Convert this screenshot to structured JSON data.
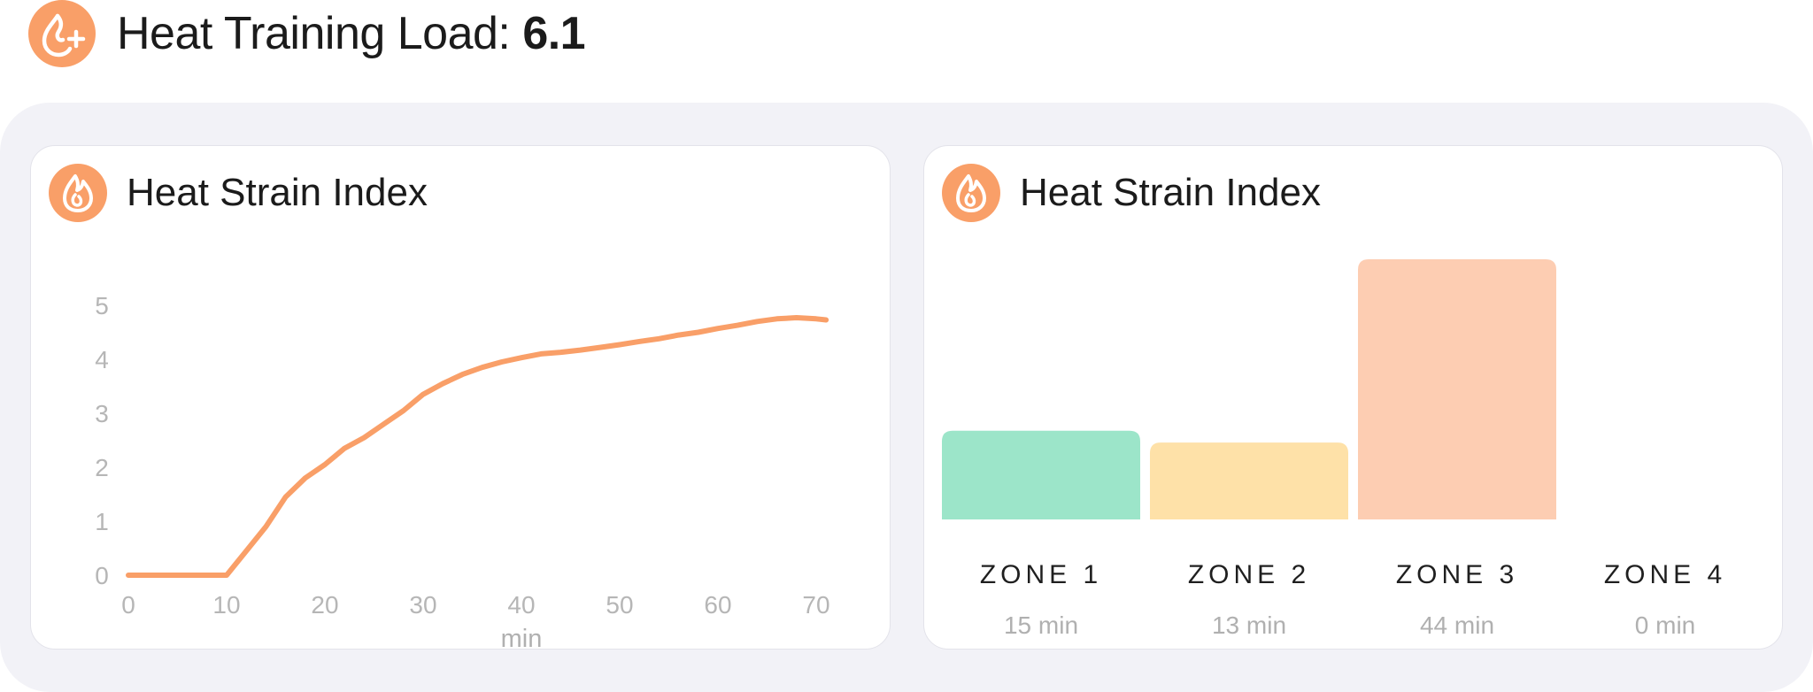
{
  "header": {
    "title_prefix": "Heat Training Load: ",
    "title_value": "6.1",
    "icon": "flame-plus-icon"
  },
  "colors": {
    "accent": "#f99f68",
    "line": "#f99f68",
    "zone1": "#9ce5c9",
    "zone2": "#fee1a8",
    "zone3": "#fdcdb2",
    "zone4": "#f3a4a4",
    "panel_bg": "#f2f2f7"
  },
  "chart_data": [
    {
      "type": "line",
      "title": "Heat Strain Index",
      "icon": "flame-icon",
      "xlabel": "min",
      "ylabel": "",
      "xlim": [
        0,
        72
      ],
      "ylim": [
        0,
        5
      ],
      "xticks": [
        0,
        10,
        20,
        30,
        40,
        50,
        60,
        70
      ],
      "yticks": [
        0,
        1,
        2,
        3,
        4,
        5
      ],
      "grid": false,
      "series": [
        {
          "x": [
            0,
            2,
            4,
            6,
            8,
            10,
            12,
            14,
            16,
            18,
            20,
            22,
            24,
            26,
            28,
            30,
            32,
            34,
            36,
            38,
            40,
            42,
            44,
            46,
            48,
            50,
            52,
            54,
            56,
            58,
            60,
            62,
            64,
            66,
            68,
            70,
            71
          ],
          "y": [
            0,
            0,
            0,
            0,
            0,
            0,
            0.45,
            0.9,
            1.45,
            1.8,
            2.05,
            2.35,
            2.55,
            2.8,
            3.05,
            3.35,
            3.55,
            3.72,
            3.85,
            3.95,
            4.03,
            4.1,
            4.13,
            4.17,
            4.22,
            4.27,
            4.33,
            4.38,
            4.45,
            4.5,
            4.57,
            4.63,
            4.7,
            4.75,
            4.77,
            4.75,
            4.73
          ]
        }
      ]
    },
    {
      "type": "bar",
      "title": "Heat Strain Index",
      "icon": "flame-icon",
      "categories": [
        "ZONE 1",
        "ZONE 2",
        "ZONE 3",
        "ZONE 4"
      ],
      "value_labels": [
        "15 min",
        "13 min",
        "44 min",
        "0 min"
      ],
      "values": [
        15,
        13,
        44,
        0
      ],
      "ylim": [
        0,
        44
      ],
      "grid": false
    }
  ]
}
